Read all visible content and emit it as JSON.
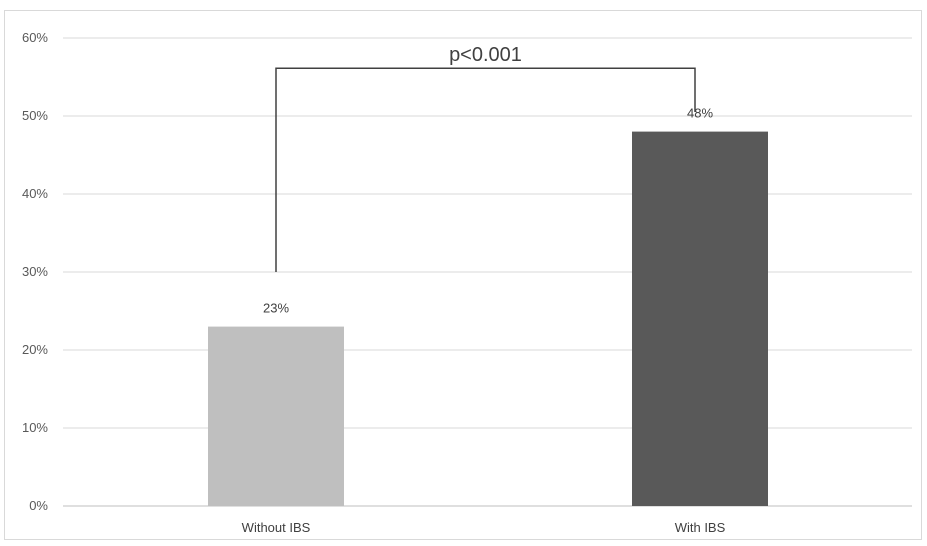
{
  "chart_data": {
    "type": "bar",
    "title": "",
    "xlabel": "",
    "ylabel": "",
    "categories": [
      "Without IBS",
      "With IBS"
    ],
    "values": [
      23,
      48
    ],
    "value_labels": [
      "23%",
      "48%"
    ],
    "ylim": [
      0,
      60
    ],
    "yticks": [
      0,
      10,
      20,
      30,
      40,
      50,
      60
    ],
    "ytick_labels": [
      "0%",
      "10%",
      "20%",
      "30%",
      "40%",
      "50%",
      "60%"
    ],
    "grid": true,
    "legend": "none",
    "bar_colors": [
      "#bfbfbf",
      "#595959"
    ],
    "annotation": {
      "text": "p<0.001",
      "type": "significance-bracket",
      "from": "Without IBS",
      "to": "With IBS",
      "left_start": 30,
      "right_start": 50,
      "top": 56
    }
  }
}
